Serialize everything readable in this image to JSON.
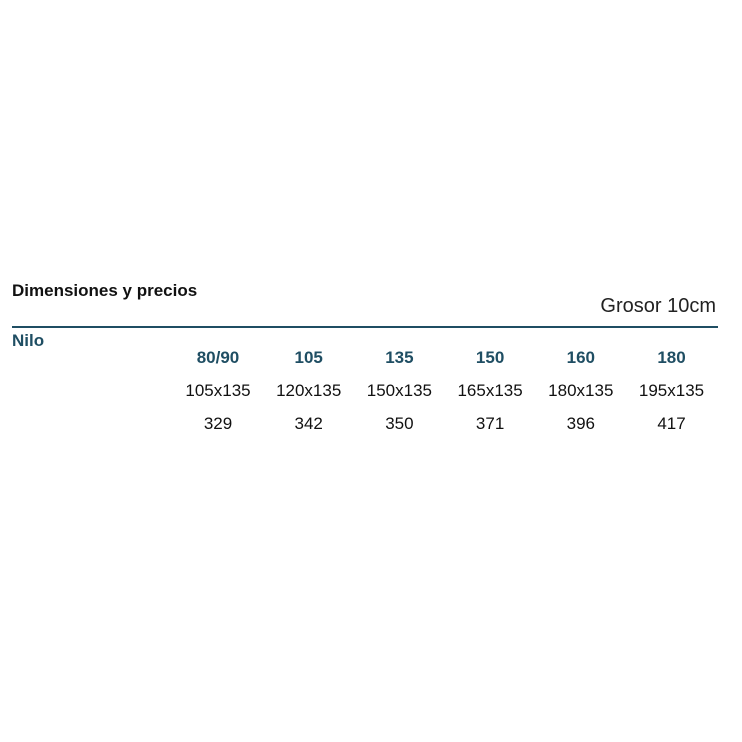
{
  "header": {
    "title": "Dimensiones y precios",
    "subtitle": "Grosor 10cm"
  },
  "table": {
    "name": "Nilo",
    "columns": [
      "80/90",
      "105",
      "135",
      "150",
      "160",
      "180"
    ],
    "rows": [
      [
        "105x135",
        "120x135",
        "150x135",
        "165x135",
        "180x135",
        "195x135"
      ],
      [
        "329",
        "342",
        "350",
        "371",
        "396",
        "417"
      ]
    ]
  }
}
